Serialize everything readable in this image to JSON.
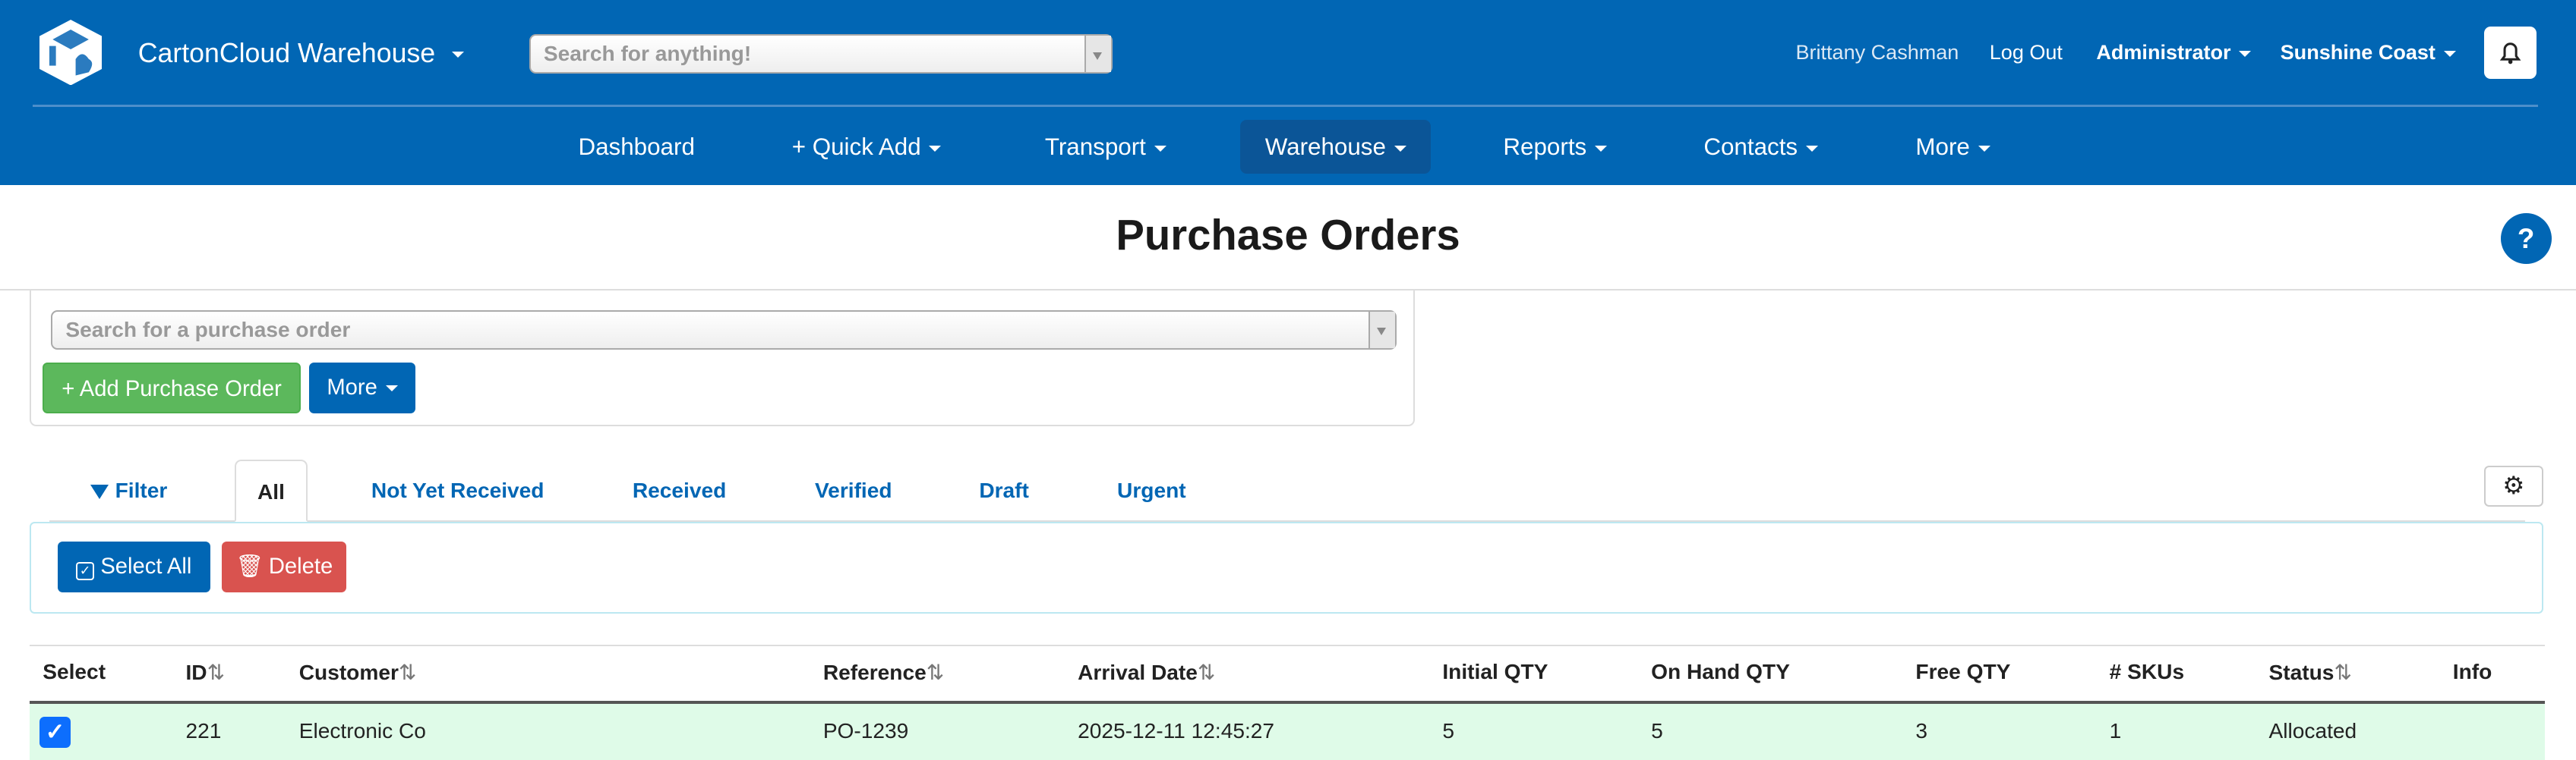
{
  "header": {
    "app_title": "CartonCloud Warehouse",
    "search_placeholder": "Search for anything!",
    "user_name": "Brittany Cashman",
    "logout": "Log Out",
    "role": "Administrator",
    "location": "Sunshine Coast",
    "brand_color": "#0166b4"
  },
  "nav": {
    "items": [
      {
        "label": "Dashboard"
      },
      {
        "label": "+ Quick Add"
      },
      {
        "label": "Transport"
      },
      {
        "label": "Warehouse",
        "active": true
      },
      {
        "label": "Reports"
      },
      {
        "label": "Contacts"
      },
      {
        "label": "More"
      }
    ]
  },
  "page": {
    "title": "Purchase Orders",
    "help": "?"
  },
  "panel": {
    "search_placeholder": "Search for a purchase order",
    "add_button": "+ Add Purchase Order",
    "more_button": "More"
  },
  "tabs": [
    {
      "label": "Filter"
    },
    {
      "label": "All",
      "active": true
    },
    {
      "label": "Not Yet Received"
    },
    {
      "label": "Received"
    },
    {
      "label": "Verified"
    },
    {
      "label": "Draft"
    },
    {
      "label": "Urgent"
    }
  ],
  "actions": {
    "select_all": "Select All",
    "delete": "Delete"
  },
  "table": {
    "columns": [
      "Select",
      "ID",
      "Customer",
      "Reference",
      "Arrival Date",
      "Initial QTY",
      "On Hand QTY",
      "Free QTY",
      "# SKUs",
      "Status",
      "Info"
    ],
    "sort_glyph": "⇅",
    "rows": [
      {
        "selected": true,
        "id": "221",
        "customer": "Electronic Co",
        "reference": "PO-1239",
        "arrival": "2025-12-11 12:45:27",
        "initial": "5",
        "on_hand": "5",
        "free": "3",
        "skus": "1",
        "status": "Allocated",
        "info": ""
      }
    ]
  }
}
